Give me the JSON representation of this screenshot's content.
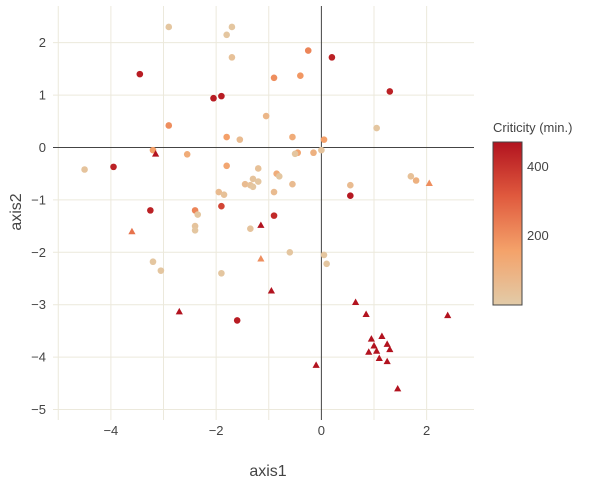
{
  "chart_data": {
    "type": "scatter",
    "xlabel": "axis1",
    "ylabel": "axis2",
    "xlim": [
      -5.1,
      2.9
    ],
    "ylim": [
      -5.2,
      2.7
    ],
    "x_ticks": [
      -4,
      -2,
      0,
      2
    ],
    "y_ticks": [
      -5,
      -4,
      -3,
      -2,
      -1,
      0,
      1,
      2
    ],
    "x_tick_labels": [
      "−4",
      "−2",
      "0",
      "2"
    ],
    "y_tick_labels": [
      "−5",
      "−4",
      "−3",
      "−2",
      "−1",
      "0",
      "1",
      "2"
    ],
    "grid": true,
    "zero_lines": true,
    "colorbar": {
      "title": "Criticity (min.)",
      "range": [
        0,
        470
      ],
      "ticks": [
        200,
        400
      ],
      "tick_labels": [
        "200",
        "400"
      ],
      "colorscale": [
        "#e2cba8",
        "#f4a26a",
        "#e05a3e",
        "#b2131f"
      ]
    },
    "series": [
      {
        "marker": "circle",
        "points": [
          {
            "x": -2.9,
            "y": 2.3,
            "c": 20
          },
          {
            "x": -1.7,
            "y": 2.3,
            "c": 20
          },
          {
            "x": -1.8,
            "y": 2.15,
            "c": 20
          },
          {
            "x": -0.25,
            "y": 1.85,
            "c": 220
          },
          {
            "x": 0.2,
            "y": 1.72,
            "c": 440
          },
          {
            "x": -1.7,
            "y": 1.72,
            "c": 40
          },
          {
            "x": -3.45,
            "y": 1.4,
            "c": 450
          },
          {
            "x": -0.4,
            "y": 1.37,
            "c": 180
          },
          {
            "x": -0.9,
            "y": 1.33,
            "c": 200
          },
          {
            "x": 1.3,
            "y": 1.07,
            "c": 440
          },
          {
            "x": -1.9,
            "y": 0.98,
            "c": 450
          },
          {
            "x": -2.05,
            "y": 0.94,
            "c": 450
          },
          {
            "x": -1.05,
            "y": 0.6,
            "c": 80
          },
          {
            "x": -2.9,
            "y": 0.42,
            "c": 200
          },
          {
            "x": 1.05,
            "y": 0.37,
            "c": 20
          },
          {
            "x": -1.8,
            "y": 0.2,
            "c": 160
          },
          {
            "x": -1.55,
            "y": 0.15,
            "c": 60
          },
          {
            "x": -0.55,
            "y": 0.2,
            "c": 120
          },
          {
            "x": 0.05,
            "y": 0.15,
            "c": 160
          },
          {
            "x": -3.2,
            "y": -0.05,
            "c": 160
          },
          {
            "x": -2.55,
            "y": -0.13,
            "c": 120
          },
          {
            "x": -0.45,
            "y": -0.1,
            "c": 140
          },
          {
            "x": -0.15,
            "y": -0.1,
            "c": 100
          },
          {
            "x": 0.0,
            "y": -0.05,
            "c": 30
          },
          {
            "x": -0.5,
            "y": -0.12,
            "c": 20
          },
          {
            "x": -1.8,
            "y": -0.35,
            "c": 140
          },
          {
            "x": -1.2,
            "y": -0.4,
            "c": 40
          },
          {
            "x": -0.85,
            "y": -0.5,
            "c": 120
          },
          {
            "x": -0.8,
            "y": -0.55,
            "c": 20
          },
          {
            "x": -1.3,
            "y": -0.6,
            "c": 30
          },
          {
            "x": -1.2,
            "y": -0.65,
            "c": 20
          },
          {
            "x": -1.45,
            "y": -0.7,
            "c": 60
          },
          {
            "x": -1.35,
            "y": -0.72,
            "c": 40
          },
          {
            "x": -1.3,
            "y": -0.75,
            "c": 20
          },
          {
            "x": -0.55,
            "y": -0.7,
            "c": 60
          },
          {
            "x": -4.5,
            "y": -0.42,
            "c": 30
          },
          {
            "x": -3.95,
            "y": -0.37,
            "c": 440
          },
          {
            "x": 1.7,
            "y": -0.55,
            "c": 40
          },
          {
            "x": 1.8,
            "y": -0.63,
            "c": 100
          },
          {
            "x": 0.55,
            "y": -0.72,
            "c": 60
          },
          {
            "x": -1.95,
            "y": -0.85,
            "c": 60
          },
          {
            "x": -1.85,
            "y": -0.9,
            "c": 40
          },
          {
            "x": -0.9,
            "y": -0.85,
            "c": 60
          },
          {
            "x": 0.55,
            "y": -0.92,
            "c": 460
          },
          {
            "x": -3.25,
            "y": -1.2,
            "c": 440
          },
          {
            "x": -2.4,
            "y": -1.2,
            "c": 220
          },
          {
            "x": -2.35,
            "y": -1.28,
            "c": 20
          },
          {
            "x": -1.9,
            "y": -1.12,
            "c": 360
          },
          {
            "x": -0.9,
            "y": -1.3,
            "c": 420
          },
          {
            "x": -1.35,
            "y": -1.55,
            "c": 30
          },
          {
            "x": -2.4,
            "y": -1.5,
            "c": 30
          },
          {
            "x": -2.4,
            "y": -1.58,
            "c": 20
          },
          {
            "x": -0.6,
            "y": -2.0,
            "c": 20
          },
          {
            "x": 0.05,
            "y": -2.05,
            "c": 20
          },
          {
            "x": 0.1,
            "y": -2.22,
            "c": 20
          },
          {
            "x": -3.2,
            "y": -2.18,
            "c": 20
          },
          {
            "x": -3.05,
            "y": -2.35,
            "c": 20
          },
          {
            "x": -1.9,
            "y": -2.4,
            "c": 20
          },
          {
            "x": -1.6,
            "y": -3.3,
            "c": 450
          }
        ]
      },
      {
        "marker": "triangle",
        "points": [
          {
            "x": -3.15,
            "y": -0.12,
            "c": 470
          },
          {
            "x": 2.05,
            "y": -0.68,
            "c": 200
          },
          {
            "x": -3.6,
            "y": -1.6,
            "c": 260
          },
          {
            "x": -1.15,
            "y": -1.48,
            "c": 470
          },
          {
            "x": -1.15,
            "y": -2.12,
            "c": 200
          },
          {
            "x": -0.95,
            "y": -2.73,
            "c": 470
          },
          {
            "x": -2.7,
            "y": -3.13,
            "c": 470
          },
          {
            "x": 0.65,
            "y": -2.95,
            "c": 470
          },
          {
            "x": 0.85,
            "y": -3.18,
            "c": 470
          },
          {
            "x": 2.4,
            "y": -3.2,
            "c": 470
          },
          {
            "x": 0.95,
            "y": -3.65,
            "c": 470
          },
          {
            "x": 1.15,
            "y": -3.6,
            "c": 470
          },
          {
            "x": 1.0,
            "y": -3.78,
            "c": 470
          },
          {
            "x": 1.25,
            "y": -3.75,
            "c": 470
          },
          {
            "x": 0.9,
            "y": -3.9,
            "c": 470
          },
          {
            "x": 1.05,
            "y": -3.88,
            "c": 470
          },
          {
            "x": 1.3,
            "y": -3.85,
            "c": 470
          },
          {
            "x": 1.1,
            "y": -4.02,
            "c": 470
          },
          {
            "x": 1.25,
            "y": -4.08,
            "c": 470
          },
          {
            "x": -0.1,
            "y": -4.15,
            "c": 470
          },
          {
            "x": 1.45,
            "y": -4.6,
            "c": 470
          }
        ]
      }
    ]
  }
}
